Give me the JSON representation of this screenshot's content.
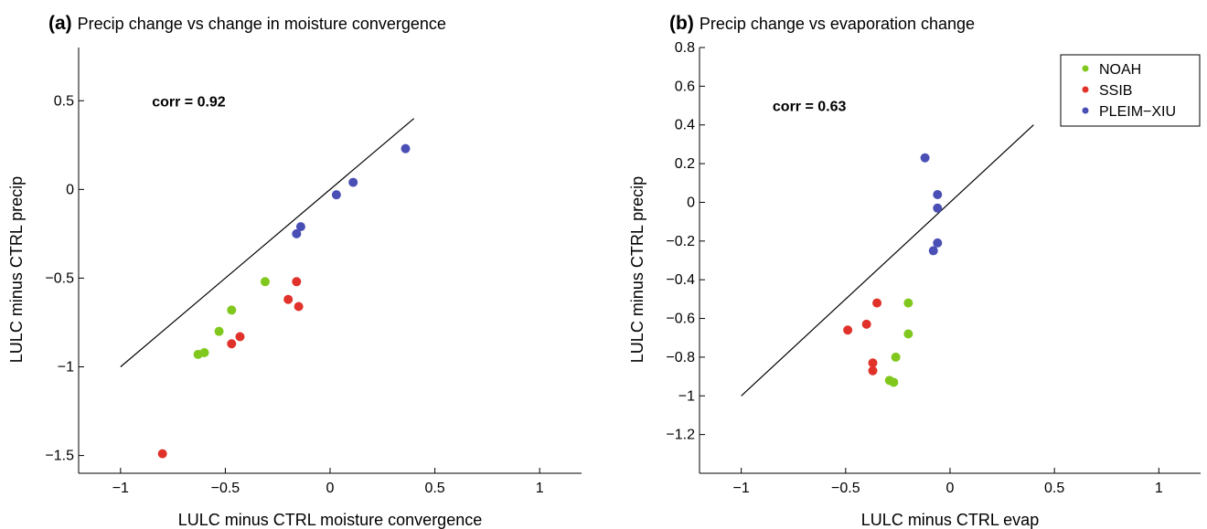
{
  "chart_data": [
    {
      "type": "scatter",
      "panel_tag": "(a)",
      "title": "Precip change vs change in moisture convergence",
      "xlabel": "LULC minus CTRL moisture convergence",
      "ylabel": "LULC minus CTRL precip",
      "xlim": [
        -1.2,
        1.2
      ],
      "ylim": [
        -1.6,
        0.8
      ],
      "x_ticks": [
        -1,
        -0.5,
        0,
        0.5,
        1
      ],
      "x_tick_labels": [
        "−1",
        "−0.5",
        "0",
        "0.5",
        "1"
      ],
      "y_ticks": [
        -1.5,
        -1,
        -0.5,
        0,
        0.5
      ],
      "y_tick_labels": [
        "−1.5",
        "−1",
        "−0.5",
        "0",
        "0.5"
      ],
      "annotation": "corr = 0.92",
      "annotation_pos": [
        -0.85,
        0.5
      ],
      "reference_line": [
        [
          -1,
          -1
        ],
        [
          0.4,
          0.4
        ]
      ],
      "grid": false,
      "legend": null,
      "series": [
        {
          "key": "NOAH",
          "color": "#80c81e",
          "points": [
            [
              -0.63,
              -0.93
            ],
            [
              -0.6,
              -0.92
            ],
            [
              -0.53,
              -0.8
            ],
            [
              -0.47,
              -0.68
            ],
            [
              -0.31,
              -0.52
            ]
          ]
        },
        {
          "key": "SSIB",
          "color": "#e0322a",
          "points": [
            [
              -0.8,
              -1.49
            ],
            [
              -0.47,
              -0.87
            ],
            [
              -0.43,
              -0.83
            ],
            [
              -0.2,
              -0.62
            ],
            [
              -0.16,
              -0.52
            ],
            [
              -0.15,
              -0.66
            ]
          ]
        },
        {
          "key": "PLEIM-XIU",
          "color": "#4a4fb5",
          "points": [
            [
              -0.14,
              -0.21
            ],
            [
              -0.16,
              -0.25
            ],
            [
              0.03,
              -0.03
            ],
            [
              0.11,
              0.04
            ],
            [
              0.36,
              0.23
            ]
          ]
        }
      ]
    },
    {
      "type": "scatter",
      "panel_tag": "(b)",
      "title": "Precip change vs evaporation change",
      "xlabel": "LULC minus CTRL evap",
      "ylabel": "LULC minus CTRL precip",
      "xlim": [
        -1.2,
        1.2
      ],
      "ylim": [
        -1.4,
        0.8
      ],
      "x_ticks": [
        -1,
        -0.5,
        0,
        0.5,
        1
      ],
      "x_tick_labels": [
        "−1",
        "−0.5",
        "0",
        "0.5",
        "1"
      ],
      "y_ticks": [
        -1.2,
        -1,
        -0.8,
        -0.6,
        -0.4,
        -0.2,
        0,
        0.2,
        0.4,
        0.6,
        0.8
      ],
      "y_tick_labels": [
        "−1.2",
        "−1",
        "−0.8",
        "−0.6",
        "−0.4",
        "−0.2",
        "0",
        "0.2",
        "0.4",
        "0.6",
        "0.8"
      ],
      "annotation": "corr = 0.63",
      "annotation_pos": [
        -0.85,
        0.5
      ],
      "reference_line": [
        [
          -1,
          -1
        ],
        [
          0.4,
          0.4
        ]
      ],
      "grid": false,
      "legend": {
        "placement": "top-right",
        "entries": [
          "NOAH",
          "SSIB",
          "PLEIM−XIU"
        ]
      },
      "series": [
        {
          "key": "NOAH",
          "color": "#80c81e",
          "points": [
            [
              -0.2,
              -0.52
            ],
            [
              -0.2,
              -0.68
            ],
            [
              -0.26,
              -0.8
            ],
            [
              -0.29,
              -0.92
            ],
            [
              -0.27,
              -0.93
            ]
          ]
        },
        {
          "key": "SSIB",
          "color": "#e0322a",
          "points": [
            [
              -0.35,
              -0.52
            ],
            [
              -0.4,
              -0.63
            ],
            [
              -0.49,
              -0.66
            ],
            [
              -0.37,
              -0.83
            ],
            [
              -0.37,
              -0.87
            ]
          ]
        },
        {
          "key": "PLEIM-XIU",
          "color": "#4a4fb5",
          "points": [
            [
              -0.12,
              0.23
            ],
            [
              -0.06,
              0.04
            ],
            [
              -0.06,
              -0.03
            ],
            [
              -0.06,
              -0.21
            ],
            [
              -0.08,
              -0.25
            ]
          ]
        }
      ]
    }
  ]
}
